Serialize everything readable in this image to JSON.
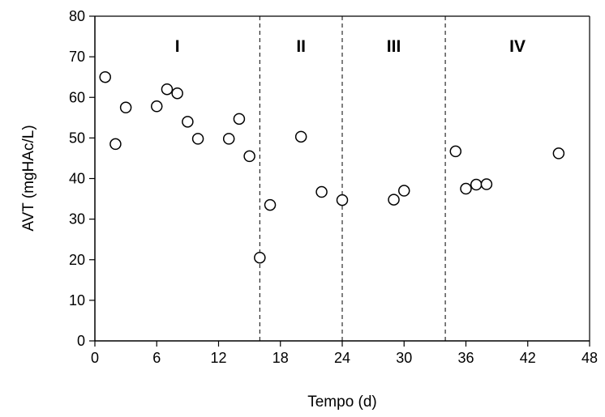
{
  "chart_data": {
    "type": "scatter",
    "xlabel": "Tempo (d)",
    "ylabel": "AVT (mgHAc/L)",
    "xlim": [
      0,
      48
    ],
    "ylim": [
      0,
      80
    ],
    "xticks": [
      "0",
      "6",
      "12",
      "18",
      "24",
      "30",
      "36",
      "42",
      "48"
    ],
    "yticks": [
      "0",
      "10",
      "20",
      "30",
      "40",
      "50",
      "60",
      "70",
      "80"
    ],
    "grid": false,
    "marker": "open-circle",
    "phase_boundaries": [
      16,
      24,
      34
    ],
    "phases": [
      {
        "label": "I",
        "center_x": 8
      },
      {
        "label": "II",
        "center_x": 20
      },
      {
        "label": "III",
        "center_x": 29
      },
      {
        "label": "IV",
        "center_x": 41
      }
    ],
    "points": [
      {
        "x": 1,
        "y": 65
      },
      {
        "x": 2,
        "y": 48.5
      },
      {
        "x": 3,
        "y": 57.5
      },
      {
        "x": 6,
        "y": 57.8
      },
      {
        "x": 7,
        "y": 62
      },
      {
        "x": 8,
        "y": 61
      },
      {
        "x": 9,
        "y": 54
      },
      {
        "x": 10,
        "y": 49.8
      },
      {
        "x": 13,
        "y": 49.8
      },
      {
        "x": 14,
        "y": 54.7
      },
      {
        "x": 15,
        "y": 45.5
      },
      {
        "x": 16,
        "y": 20.5
      },
      {
        "x": 17,
        "y": 33.5
      },
      {
        "x": 20,
        "y": 50.3
      },
      {
        "x": 22,
        "y": 36.7
      },
      {
        "x": 24,
        "y": 34.7
      },
      {
        "x": 29,
        "y": 34.8
      },
      {
        "x": 30,
        "y": 37
      },
      {
        "x": 35,
        "y": 46.7
      },
      {
        "x": 36,
        "y": 37.5
      },
      {
        "x": 37,
        "y": 38.5
      },
      {
        "x": 38,
        "y": 38.6
      },
      {
        "x": 45,
        "y": 46.2
      }
    ]
  }
}
